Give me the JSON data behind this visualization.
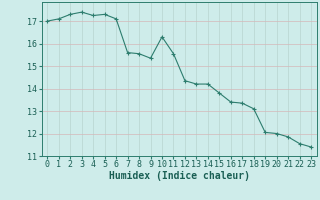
{
  "x": [
    0,
    1,
    2,
    3,
    4,
    5,
    6,
    7,
    8,
    9,
    10,
    11,
    12,
    13,
    14,
    15,
    16,
    17,
    18,
    19,
    20,
    21,
    22,
    23
  ],
  "y": [
    17.0,
    17.1,
    17.3,
    17.4,
    17.25,
    17.3,
    17.1,
    15.6,
    15.55,
    15.35,
    16.3,
    15.55,
    14.35,
    14.2,
    14.2,
    13.8,
    13.4,
    13.35,
    13.1,
    12.05,
    12.0,
    11.85,
    11.55,
    11.4
  ],
  "line_color": "#2d7d6e",
  "marker": "+",
  "marker_size": 3,
  "marker_linewidth": 0.8,
  "bg_color": "#ceecea",
  "grid_color_major": "#b8d8d4",
  "grid_color_minor": "#daecea",
  "xlabel": "Humidex (Indice chaleur)",
  "xlim": [
    -0.5,
    23.5
  ],
  "ylim": [
    11,
    17.85
  ],
  "yticks": [
    11,
    12,
    13,
    14,
    15,
    16,
    17
  ],
  "xticks": [
    0,
    1,
    2,
    3,
    4,
    5,
    6,
    7,
    8,
    9,
    10,
    11,
    12,
    13,
    14,
    15,
    16,
    17,
    18,
    19,
    20,
    21,
    22,
    23
  ],
  "tick_color": "#2d7d6e",
  "label_color": "#1a5f54",
  "font_size": 6,
  "xlabel_fontsize": 7,
  "line_width": 0.8
}
